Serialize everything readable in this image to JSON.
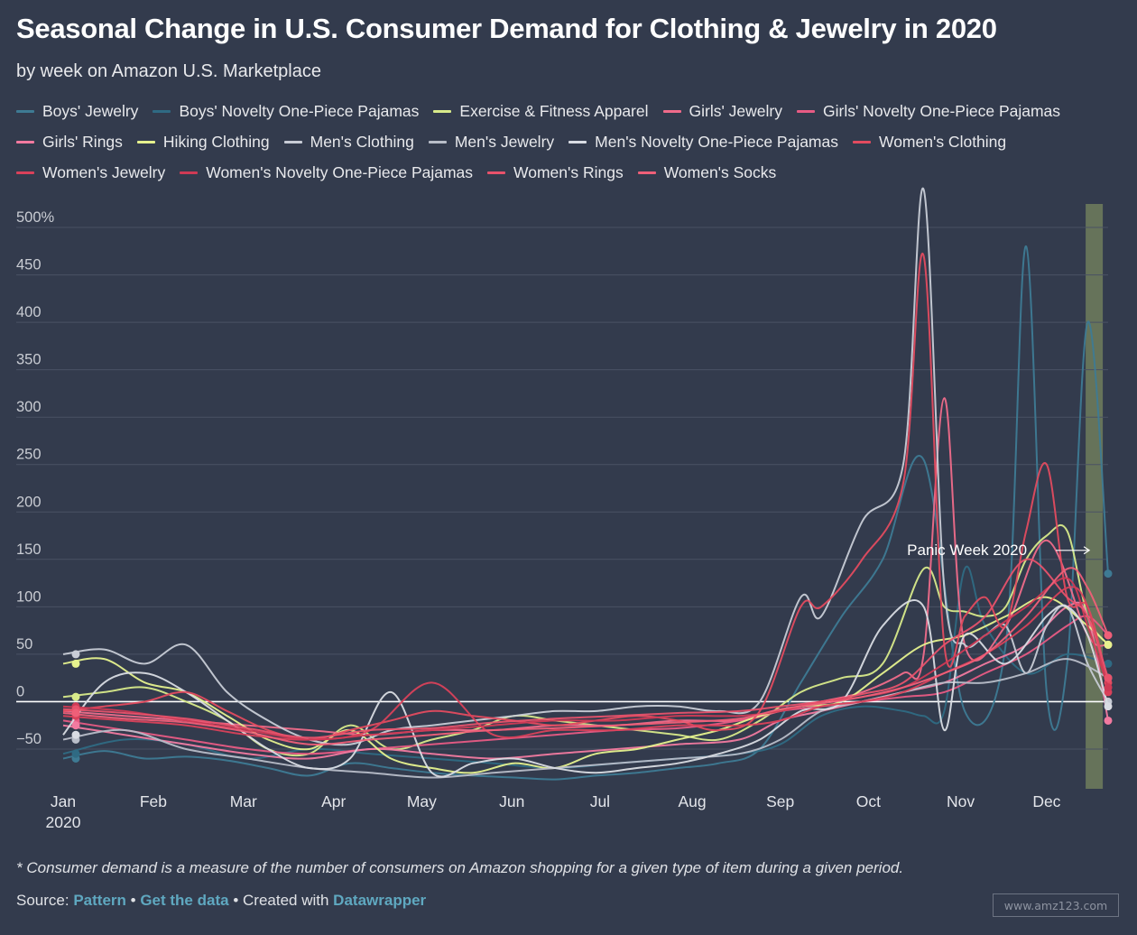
{
  "header": {
    "title": "Seasonal Change in U.S. Consumer Demand for Clothing & Jewelry in 2020",
    "subtitle": "by week on Amazon U.S. Marketplace"
  },
  "footer": {
    "footnote": "* Consumer demand is a measure of the number of consumers on Amazon shopping for a given type of item during a given period.",
    "source_prefix": "Source:",
    "source_link": "Pattern",
    "sep1": "•",
    "data_link": "Get the data",
    "sep2": "•",
    "created_prefix": "Created with",
    "created_link": "Datawrapper",
    "watermark": "www.amz123.com"
  },
  "chart_data": {
    "type": "line",
    "title": "Seasonal Change in U.S. Consumer Demand for Clothing & Jewelry in 2020",
    "subtitle": "by week on Amazon U.S. Marketplace",
    "x_ticks": [
      "Jan",
      "Feb",
      "Mar",
      "Apr",
      "May",
      "Jun",
      "Jul",
      "Aug",
      "Sep",
      "Oct",
      "Nov",
      "Dec"
    ],
    "x_tick_sub": "2020",
    "y_ticks": [
      500,
      450,
      400,
      350,
      300,
      250,
      200,
      150,
      100,
      50,
      0,
      -50
    ],
    "y_tick_labels": [
      "500%",
      "450",
      "400",
      "350",
      "300",
      "250",
      "200",
      "150",
      "100",
      "50",
      "0",
      "−50"
    ],
    "ylim": [
      -90,
      540
    ],
    "x_unit": "week of 2020",
    "xlim": [
      1,
      52
    ],
    "grid": true,
    "legend_position": "top",
    "highlight": {
      "label": "Panic Week 2020",
      "week": 51.3,
      "color": "#6b7a5c"
    },
    "series": [
      {
        "name": "Boys' Jewelry",
        "color": "#3e7a93",
        "x": [
          1,
          3,
          5,
          7,
          9,
          11,
          13,
          15,
          17,
          19,
          21,
          23,
          25,
          27,
          29,
          31,
          33,
          35,
          37,
          39,
          41,
          43,
          45,
          47,
          48,
          49,
          50,
          51,
          52
        ],
        "values": [
          -60,
          -52,
          -60,
          -58,
          -62,
          -70,
          -78,
          -65,
          -70,
          -75,
          -78,
          -80,
          -82,
          -78,
          -75,
          -70,
          -65,
          -50,
          20,
          90,
          150,
          255,
          -10,
          60,
          480,
          10,
          40,
          400,
          135
        ]
      },
      {
        "name": "Boys' Novelty One-Piece Pajamas",
        "color": "#2f6a83",
        "x": [
          1,
          4,
          7,
          10,
          13,
          16,
          19,
          22,
          25,
          28,
          31,
          34,
          36,
          38,
          40,
          42,
          43,
          44,
          45,
          46,
          48,
          50,
          52
        ],
        "values": [
          -55,
          -40,
          -45,
          -60,
          -50,
          -55,
          -60,
          -65,
          -70,
          -65,
          -60,
          -55,
          -45,
          -15,
          -5,
          -10,
          -15,
          -10,
          140,
          80,
          30,
          50,
          40
        ]
      },
      {
        "name": "Exercise & Fitness Apparel",
        "color": "#d8ea8a",
        "x": [
          1,
          3,
          5,
          7,
          9,
          11,
          13,
          15,
          17,
          19,
          21,
          23,
          25,
          27,
          29,
          31,
          33,
          35,
          37,
          39,
          41,
          43,
          44,
          45,
          46,
          47,
          48,
          49,
          50,
          51,
          52
        ],
        "values": [
          5,
          10,
          15,
          0,
          -20,
          -50,
          -55,
          -25,
          -50,
          -40,
          -30,
          -15,
          -20,
          -25,
          -30,
          -35,
          -40,
          -20,
          10,
          25,
          40,
          140,
          100,
          95,
          90,
          100,
          150,
          175,
          180,
          90,
          60
        ]
      },
      {
        "name": "Girls' Jewelry",
        "color": "#f06b8a",
        "x": [
          1,
          4,
          7,
          10,
          13,
          16,
          19,
          22,
          25,
          28,
          31,
          34,
          36,
          38,
          40,
          42,
          43,
          44,
          45,
          47,
          49,
          51,
          52
        ],
        "values": [
          -10,
          -15,
          -20,
          -25,
          -30,
          -35,
          -30,
          -30,
          -25,
          -25,
          -20,
          -20,
          -10,
          0,
          10,
          30,
          50,
          320,
          60,
          80,
          170,
          70,
          60
        ]
      },
      {
        "name": "Girls' Novelty One-Piece Pajamas",
        "color": "#e85b84",
        "x": [
          1,
          4,
          7,
          10,
          13,
          16,
          19,
          22,
          25,
          28,
          31,
          34,
          36,
          38,
          40,
          42,
          44,
          46,
          48,
          50,
          51,
          52
        ],
        "values": [
          -20,
          -30,
          -40,
          -50,
          -55,
          -50,
          -45,
          -40,
          -35,
          -30,
          -28,
          -20,
          -10,
          -5,
          0,
          5,
          10,
          30,
          50,
          80,
          90,
          70
        ]
      },
      {
        "name": "Girls' Rings",
        "color": "#f27aa0",
        "x": [
          1,
          4,
          7,
          10,
          13,
          16,
          19,
          22,
          25,
          28,
          31,
          34,
          36,
          38,
          40,
          42,
          44,
          46,
          48,
          50,
          51,
          52
        ],
        "values": [
          -25,
          -35,
          -45,
          -55,
          -60,
          -50,
          -55,
          -60,
          -55,
          -50,
          -45,
          -40,
          -20,
          -10,
          0,
          10,
          20,
          40,
          60,
          100,
          90,
          -20
        ]
      },
      {
        "name": "Hiking Clothing",
        "color": "#e6f28e",
        "x": [
          1,
          3,
          5,
          7,
          9,
          11,
          13,
          15,
          17,
          19,
          21,
          23,
          25,
          27,
          29,
          31,
          33,
          35,
          37,
          39,
          41,
          43,
          45,
          47,
          49,
          51,
          52
        ],
        "values": [
          40,
          45,
          20,
          10,
          -15,
          -40,
          -50,
          -30,
          -60,
          -70,
          -75,
          -65,
          -70,
          -55,
          -50,
          -40,
          -30,
          -15,
          -5,
          0,
          30,
          60,
          70,
          90,
          110,
          80,
          60
        ]
      },
      {
        "name": "Men's Clothing",
        "color": "#c8ccd6",
        "x": [
          1,
          3,
          5,
          7,
          9,
          11,
          13,
          15,
          17,
          19,
          21,
          23,
          25,
          27,
          29,
          31,
          33,
          35,
          37,
          38,
          40,
          42,
          43,
          44,
          45,
          46,
          47,
          48,
          49,
          50,
          51,
          52
        ],
        "values": [
          50,
          55,
          40,
          60,
          10,
          -20,
          -40,
          -45,
          -30,
          -25,
          -20,
          -15,
          -10,
          -10,
          -5,
          -5,
          -10,
          0,
          110,
          90,
          190,
          250,
          540,
          120,
          60,
          70,
          80,
          30,
          80,
          100,
          40,
          0
        ]
      },
      {
        "name": "Men's Jewelry",
        "color": "#b8bdc8",
        "x": [
          1,
          4,
          7,
          10,
          13,
          16,
          19,
          22,
          25,
          28,
          31,
          34,
          36,
          38,
          40,
          42,
          44,
          46,
          48,
          50,
          52
        ],
        "values": [
          -40,
          -30,
          -50,
          -60,
          -70,
          -75,
          -80,
          -75,
          -70,
          -65,
          -60,
          -55,
          -40,
          -10,
          0,
          10,
          20,
          20,
          30,
          45,
          25
        ]
      },
      {
        "name": "Men's Novelty One-Piece Pajamas",
        "color": "#d9dce3",
        "x": [
          1,
          3,
          5,
          7,
          9,
          11,
          13,
          15,
          17,
          19,
          21,
          23,
          25,
          27,
          29,
          31,
          33,
          35,
          37,
          39,
          41,
          43,
          44,
          45,
          47,
          49,
          50,
          51,
          52
        ],
        "values": [
          -35,
          20,
          30,
          10,
          -20,
          -50,
          -70,
          -60,
          10,
          -75,
          -65,
          -60,
          -70,
          -75,
          -70,
          -65,
          -55,
          -40,
          -10,
          0,
          80,
          100,
          -30,
          70,
          40,
          90,
          100,
          70,
          -5
        ]
      },
      {
        "name": "Women's Clothing",
        "color": "#e34b5f",
        "x": [
          1,
          3,
          5,
          7,
          9,
          11,
          13,
          15,
          17,
          19,
          21,
          23,
          25,
          27,
          29,
          31,
          33,
          35,
          37,
          38,
          40,
          42,
          43,
          44,
          45,
          46,
          47,
          48,
          49,
          50,
          51,
          52
        ],
        "values": [
          -10,
          -5,
          0,
          10,
          -10,
          -30,
          -40,
          -30,
          -20,
          -10,
          -15,
          -20,
          -25,
          -20,
          -15,
          -20,
          -30,
          -10,
          100,
          100,
          150,
          230,
          470,
          60,
          90,
          110,
          80,
          180,
          250,
          110,
          100,
          20
        ]
      },
      {
        "name": "Women's Jewelry",
        "color": "#d9415a",
        "x": [
          1,
          4,
          7,
          10,
          13,
          16,
          19,
          22,
          25,
          28,
          31,
          34,
          36,
          38,
          40,
          42,
          44,
          46,
          48,
          50,
          51,
          52
        ],
        "values": [
          -15,
          -20,
          -25,
          -35,
          -40,
          -30,
          20,
          -35,
          -30,
          -30,
          -25,
          -25,
          -20,
          -5,
          0,
          10,
          30,
          50,
          80,
          120,
          100,
          10
        ]
      },
      {
        "name": "Women's Novelty One-Piece Pajamas",
        "color": "#cf3a55",
        "x": [
          1,
          4,
          7,
          10,
          13,
          16,
          19,
          22,
          25,
          28,
          31,
          34,
          36,
          38,
          40,
          42,
          44,
          46,
          48,
          50,
          51,
          52
        ],
        "values": [
          -5,
          -10,
          -20,
          -30,
          -40,
          -35,
          -30,
          -25,
          -20,
          -20,
          -15,
          -15,
          -10,
          0,
          5,
          15,
          40,
          70,
          100,
          130,
          80,
          15
        ]
      },
      {
        "name": "Women's Rings",
        "color": "#e8526b",
        "x": [
          1,
          4,
          7,
          10,
          13,
          16,
          19,
          22,
          25,
          28,
          31,
          34,
          36,
          38,
          40,
          42,
          44,
          46,
          48,
          50,
          51,
          52
        ],
        "values": [
          -8,
          -12,
          -18,
          -28,
          -38,
          -30,
          -28,
          -22,
          -18,
          -15,
          -12,
          -10,
          -5,
          0,
          8,
          20,
          60,
          90,
          150,
          110,
          90,
          25
        ]
      },
      {
        "name": "Women's Socks",
        "color": "#ef5f78",
        "x": [
          1,
          4,
          7,
          10,
          13,
          16,
          19,
          22,
          25,
          28,
          31,
          34,
          36,
          38,
          40,
          42,
          44,
          46,
          48,
          50,
          51,
          52
        ],
        "values": [
          -12,
          -18,
          -22,
          -32,
          -45,
          -40,
          -35,
          -30,
          -28,
          -25,
          -22,
          -18,
          -8,
          -2,
          5,
          15,
          30,
          50,
          90,
          140,
          120,
          70
        ]
      }
    ]
  }
}
